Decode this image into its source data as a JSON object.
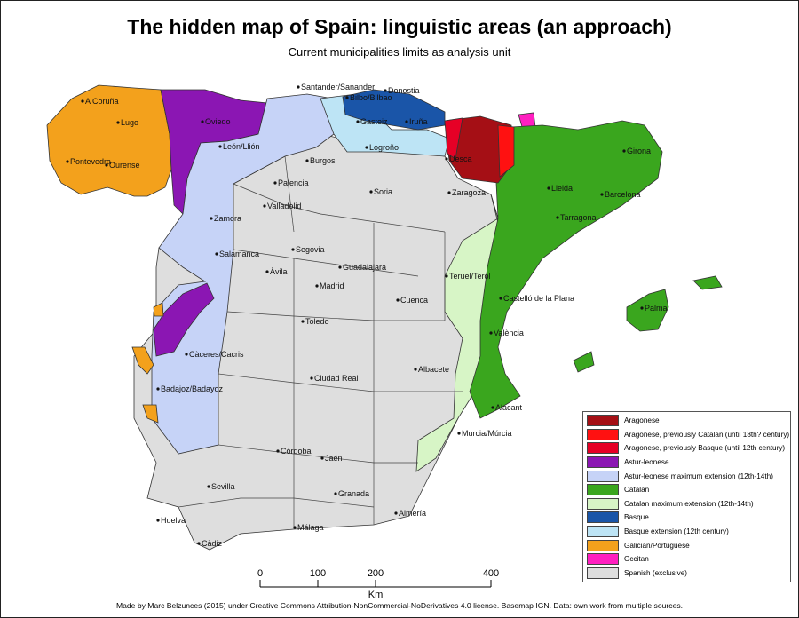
{
  "title": "The hidden map of Spain: linguistic areas (an approach)",
  "subtitle": "Current municipalities limits as analysis unit",
  "credit": "Made by Marc Belzunces (2015) under Creative Commons Attribution-NonCommercial-NoDerivatives 4.0 license. Basemap IGN. Data: own work from multiple sources.",
  "colors": {
    "aragonese": "#a50f15",
    "aragonese_cat": "#ff1111",
    "aragonese_basque": "#e60026",
    "astur": "#8b16b3",
    "astur_ext": "#c6d3f7",
    "catalan": "#3aa61e",
    "catalan_ext": "#d7f5c6",
    "basque": "#1a55a8",
    "basque_ext": "#bde4f5",
    "galician": "#f3a11c",
    "occitan": "#ff1fc0",
    "spanish": "#dedede"
  },
  "legend": [
    {
      "label": "Aragonese",
      "color": "#a50f15"
    },
    {
      "label": "Aragonese, previously Catalan (until 18th? century)",
      "color": "#ff1111"
    },
    {
      "label": "Aragonese, previously Basque (until 12th century)",
      "color": "#e60026"
    },
    {
      "label": "Astur-leonese",
      "color": "#8b16b3"
    },
    {
      "label": "Astur-leonese maximum extension (12th-14th)",
      "color": "#c6d3f7"
    },
    {
      "label": "Catalan",
      "color": "#3aa61e"
    },
    {
      "label": "Catalan maximum extension (12th-14th)",
      "color": "#d7f5c6"
    },
    {
      "label": "Basque",
      "color": "#1a55a8"
    },
    {
      "label": "Basque extension (12th century)",
      "color": "#bde4f5"
    },
    {
      "label": "Galician/Portuguese",
      "color": "#f3a11c"
    },
    {
      "label": "Occitan",
      "color": "#ff1fc0"
    },
    {
      "label": "Spanish (exclusive)",
      "color": "#dedede"
    }
  ],
  "scale": {
    "ticks": [
      "0",
      "100",
      "200",
      "400"
    ],
    "unit": "Km"
  },
  "cities": [
    "Santander/Sanander",
    "Bilbo/Bilbao",
    "Donostia",
    "Gasteiz",
    "Iruña",
    "Logroño",
    "A Coruña",
    "Lugo",
    "Pontevedra",
    "Ourense",
    "Oviedo",
    "León/Llión",
    "Burgos",
    "Palencia",
    "Valladolid",
    "Soria",
    "Zaragoza",
    "Uesca",
    "Lleida",
    "Girona",
    "Barcelona",
    "Tarragona",
    "Zamora",
    "Salamanca",
    "Segovia",
    "Àvila",
    "Guadalajara",
    "Madrid",
    "Teruel/Terol",
    "Cuenca",
    "Castelló de la Plana",
    "Palma",
    "Toledo",
    "València",
    "Càceres/Cacris",
    "Albacete",
    "Ciudad Real",
    "Badajoz/Badayoz",
    "Alacant",
    "Murcia/Múrcia",
    "Córdoba",
    "Jaén",
    "Sevilla",
    "Huelva",
    "Granada",
    "Almería",
    "Málaga",
    "Càdiz"
  ]
}
